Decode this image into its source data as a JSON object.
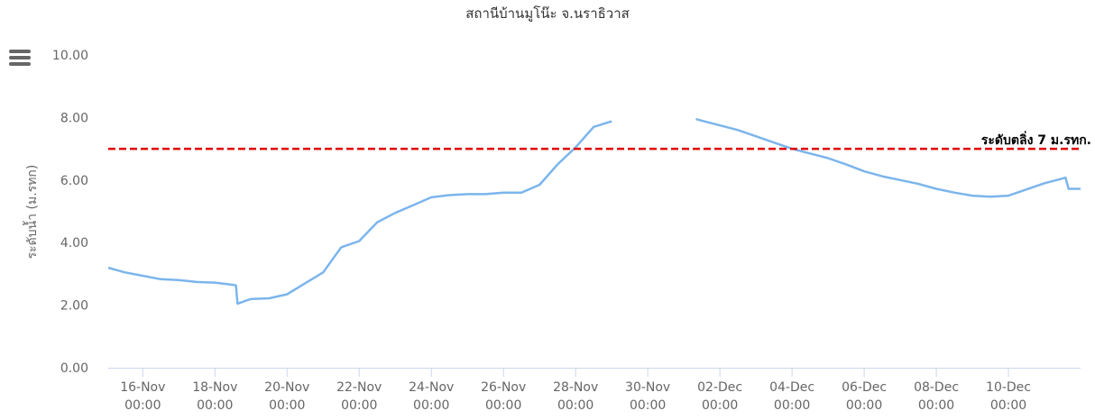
{
  "chart_data": {
    "type": "line",
    "title": "สถานีบ้านมูโน๊ะ จ.นราธิวาส",
    "y_label": "ระดับน้ำ (ม.รทก)",
    "x": [
      "15-Nov 01:00",
      "15-Nov 12:00",
      "16-Nov 00:00",
      "16-Nov 12:00",
      "17-Nov 00:00",
      "17-Nov 12:00",
      "18-Nov 00:00",
      "18-Nov 12:00",
      "18-Nov 14:00",
      "18-Nov 15:00",
      "19-Nov 00:00",
      "19-Nov 12:00",
      "20-Nov 00:00",
      "20-Nov 12:00",
      "21-Nov 00:00",
      "21-Nov 12:00",
      "22-Nov 00:00",
      "22-Nov 12:00",
      "23-Nov 00:00",
      "23-Nov 12:00",
      "24-Nov 00:00",
      "24-Nov 12:00",
      "25-Nov 00:00",
      "25-Nov 12:00",
      "26-Nov 00:00",
      "26-Nov 12:00",
      "27-Nov 00:00",
      "27-Nov 12:00",
      "28-Nov 00:00",
      "28-Nov 12:00",
      "29-Nov 00:00",
      "30-Nov 00:00",
      "01-Dec 08:00",
      "01-Dec 12:00",
      "02-Dec 00:00",
      "02-Dec 12:00",
      "03-Dec 00:00",
      "03-Dec 12:00",
      "04-Dec 00:00",
      "04-Dec 12:00",
      "05-Dec 00:00",
      "05-Dec 12:00",
      "06-Dec 00:00",
      "06-Dec 12:00",
      "07-Dec 00:00",
      "07-Dec 12:00",
      "08-Dec 00:00",
      "08-Dec 12:00",
      "09-Dec 00:00",
      "09-Dec 12:00",
      "10-Dec 00:00",
      "10-Dec 12:00",
      "11-Dec 00:00",
      "11-Dec 12:00",
      "11-Dec 14:00",
      "11-Dec 16:00",
      "12-Dec 00:00"
    ],
    "series": [
      {
        "name": "ระดับน้ำ",
        "color": "#7cb5ec",
        "values": [
          3.2,
          3.05,
          2.94,
          2.83,
          2.8,
          2.74,
          2.72,
          2.65,
          2.63,
          2.05,
          2.2,
          2.22,
          2.35,
          2.7,
          3.05,
          3.85,
          4.05,
          4.65,
          4.95,
          5.2,
          5.45,
          5.52,
          5.55,
          5.55,
          5.6,
          5.6,
          5.85,
          6.5,
          7.05,
          7.7,
          7.88,
          null,
          7.95,
          7.9,
          7.75,
          7.6,
          7.4,
          7.2,
          7.0,
          6.85,
          6.7,
          6.5,
          6.28,
          6.12,
          6.0,
          5.88,
          5.72,
          5.6,
          5.5,
          5.47,
          5.5,
          5.7,
          5.9,
          6.05,
          6.08,
          5.72,
          5.72
        ]
      }
    ],
    "xlim": [
      "15-Nov 01:00",
      "12-Dec 00:00"
    ],
    "xticks": [
      "16-Nov 00:00",
      "18-Nov 00:00",
      "20-Nov 00:00",
      "22-Nov 00:00",
      "24-Nov 00:00",
      "26-Nov 00:00",
      "28-Nov 00:00",
      "30-Nov 00:00",
      "02-Dec 00:00",
      "04-Dec 00:00",
      "06-Dec 00:00",
      "08-Dec 00:00",
      "10-Dec 00:00"
    ],
    "ylim": [
      0,
      10
    ],
    "yticks": [
      {
        "value": 0,
        "label": "0.00"
      },
      {
        "value": 2,
        "label": "2.00"
      },
      {
        "value": 4,
        "label": "4.00"
      },
      {
        "value": 6,
        "label": "6.00"
      },
      {
        "value": 8,
        "label": "8.00"
      },
      {
        "value": 10,
        "label": "10.00"
      }
    ],
    "plot_lines": [
      {
        "value": 7,
        "label": "ระดับตลิ่ง 7 ม.รทก.",
        "color": "#e00000"
      }
    ]
  }
}
